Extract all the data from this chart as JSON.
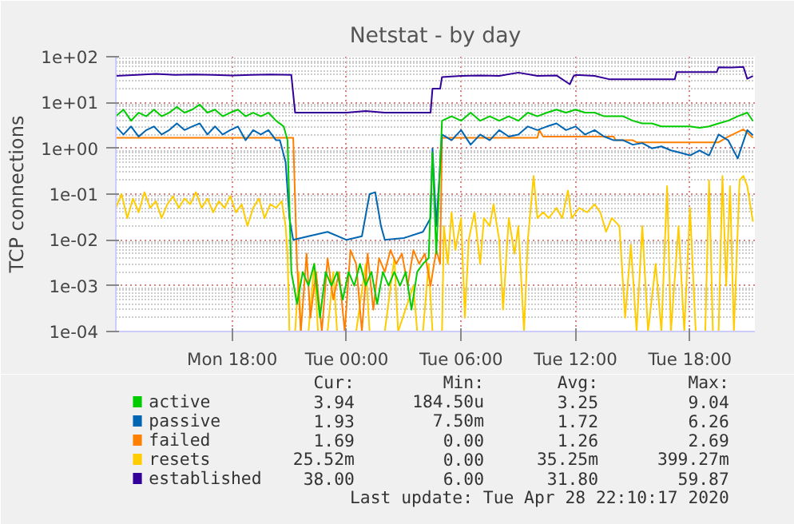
{
  "chart_data": {
    "type": "line",
    "title": "Netstat - by day",
    "ylabel": "TCP connections",
    "log": true,
    "grid": true,
    "legend": "bottom",
    "line_style": "solid",
    "xlim": [
      "2020-04-27T11:54",
      "2020-04-28T21:24"
    ],
    "ylim": [
      0.0001,
      100
    ],
    "xticks": [
      {
        "value": "2020-04-27T18:00",
        "label": "Mon 18:00"
      },
      {
        "value": "2020-04-28T00:00",
        "label": "Tue 00:00"
      },
      {
        "value": "2020-04-28T06:00",
        "label": "Tue 06:00"
      },
      {
        "value": "2020-04-28T12:00",
        "label": "Tue 12:00"
      },
      {
        "value": "2020-04-28T18:00",
        "label": "Tue 18:00"
      }
    ],
    "yticks": [
      {
        "value": 0.0001,
        "label": "1e-04"
      },
      {
        "value": 0.001,
        "label": "1e-03"
      },
      {
        "value": 0.01,
        "label": "1e-02"
      },
      {
        "value": 0.1,
        "label": "1e-01"
      },
      {
        "value": 1,
        "label": "1e+00"
      },
      {
        "value": 10,
        "label": "1e+01"
      },
      {
        "value": 100,
        "label": "1e+02"
      }
    ],
    "annotations": [
      "Cur:",
      "Min:",
      "Avg:",
      "Max:",
      "3.94",
      "184.50u",
      "3.25",
      "9.04",
      "1.93",
      "7.50m",
      "1.72",
      "6.26",
      "1.69",
      "0.00",
      "1.26",
      "2.69",
      "25.52m",
      "0.00",
      "35.25m",
      "399.27m",
      "38.00",
      "6.00",
      "31.80",
      "59.87",
      "Last update: Tue Apr 28 22:10:17 2020"
    ],
    "series": [
      {
        "name": "active",
        "color": "#00cc00",
        "x": [
          "2020-04-27T11:54",
          "2020-04-27T12:18",
          "2020-04-27T12:42",
          "2020-04-27T13:06",
          "2020-04-27T13:30",
          "2020-04-27T13:54",
          "2020-04-27T14:18",
          "2020-04-27T14:42",
          "2020-04-27T15:06",
          "2020-04-27T15:30",
          "2020-04-27T15:54",
          "2020-04-27T16:18",
          "2020-04-27T16:42",
          "2020-04-27T17:06",
          "2020-04-27T17:30",
          "2020-04-27T17:54",
          "2020-04-27T18:18",
          "2020-04-27T18:42",
          "2020-04-27T19:06",
          "2020-04-27T19:30",
          "2020-04-27T19:54",
          "2020-04-27T20:18",
          "2020-04-27T20:42",
          "2020-04-27T20:54",
          "2020-04-27T21:06",
          "2020-04-27T21:24",
          "2020-04-27T21:42",
          "2020-04-27T22:00",
          "2020-04-27T22:18",
          "2020-04-27T22:36",
          "2020-04-27T22:54",
          "2020-04-27T23:12",
          "2020-04-27T23:30",
          "2020-04-27T23:48",
          "2020-04-28T00:06",
          "2020-04-28T00:24",
          "2020-04-28T00:42",
          "2020-04-28T01:00",
          "2020-04-28T01:18",
          "2020-04-28T01:36",
          "2020-04-28T01:54",
          "2020-04-28T02:12",
          "2020-04-28T02:30",
          "2020-04-28T02:48",
          "2020-04-28T03:06",
          "2020-04-28T03:24",
          "2020-04-28T03:42",
          "2020-04-28T04:00",
          "2020-04-28T04:18",
          "2020-04-28T04:30",
          "2020-04-28T04:42",
          "2020-04-28T05:00",
          "2020-04-28T05:30",
          "2020-04-28T06:00",
          "2020-04-28T06:30",
          "2020-04-28T07:00",
          "2020-04-28T07:30",
          "2020-04-28T08:00",
          "2020-04-28T08:30",
          "2020-04-28T09:00",
          "2020-04-28T09:30",
          "2020-04-28T10:00",
          "2020-04-28T10:30",
          "2020-04-28T11:00",
          "2020-04-28T11:30",
          "2020-04-28T12:00",
          "2020-04-28T12:30",
          "2020-04-28T13:00",
          "2020-04-28T13:30",
          "2020-04-28T14:00",
          "2020-04-28T14:30",
          "2020-04-28T15:00",
          "2020-04-28T15:30",
          "2020-04-28T16:00",
          "2020-04-28T16:30",
          "2020-04-28T17:00",
          "2020-04-28T17:30",
          "2020-04-28T18:00",
          "2020-04-28T18:30",
          "2020-04-28T19:00",
          "2020-04-28T19:30",
          "2020-04-28T20:00",
          "2020-04-28T20:30",
          "2020-04-28T21:00",
          "2020-04-28T21:18"
        ],
        "values": [
          5,
          7,
          4,
          6,
          5,
          7,
          5,
          6,
          8,
          6,
          7,
          9,
          6,
          7,
          5,
          6,
          7,
          5,
          6,
          5,
          6,
          4,
          3,
          1.5,
          0.002,
          0.0004,
          0.002,
          0.001,
          0.003,
          0.0002,
          0.002,
          0.001,
          0.002,
          0.0005,
          0.002,
          0.001,
          0.003,
          0.001,
          0.002,
          0.0004,
          0.002,
          0.001,
          0.002,
          0.001,
          0.002,
          0.0003,
          0.002,
          0.003,
          0.004,
          0.8,
          0.005,
          4,
          5,
          4,
          6,
          4,
          5,
          4,
          5,
          4,
          6,
          5,
          6,
          7,
          6,
          7,
          6,
          6,
          5,
          5,
          5,
          4,
          3.5,
          3.5,
          3,
          3,
          3,
          3,
          2.8,
          3,
          3.5,
          4,
          5,
          6,
          3.94
        ]
      },
      {
        "name": "passive",
        "color": "#0066b3",
        "x": [
          "2020-04-27T11:54",
          "2020-04-27T12:18",
          "2020-04-27T12:42",
          "2020-04-27T13:06",
          "2020-04-27T13:30",
          "2020-04-27T13:54",
          "2020-04-27T14:18",
          "2020-04-27T14:42",
          "2020-04-27T15:06",
          "2020-04-27T15:30",
          "2020-04-27T15:54",
          "2020-04-27T16:18",
          "2020-04-27T16:42",
          "2020-04-27T17:06",
          "2020-04-27T17:30",
          "2020-04-27T17:54",
          "2020-04-27T18:18",
          "2020-04-27T18:42",
          "2020-04-27T19:06",
          "2020-04-27T19:30",
          "2020-04-27T19:54",
          "2020-04-27T20:18",
          "2020-04-27T20:30",
          "2020-04-27T20:48",
          "2020-04-27T21:00",
          "2020-04-27T21:12",
          "2020-04-27T22:00",
          "2020-04-27T23:00",
          "2020-04-28T00:00",
          "2020-04-28T00:48",
          "2020-04-28T01:12",
          "2020-04-28T01:30",
          "2020-04-28T01:48",
          "2020-04-28T02:00",
          "2020-04-28T03:00",
          "2020-04-28T04:00",
          "2020-04-28T04:24",
          "2020-04-28T04:30",
          "2020-04-28T04:42",
          "2020-04-28T05:00",
          "2020-04-28T05:30",
          "2020-04-28T06:00",
          "2020-04-28T06:30",
          "2020-04-28T07:00",
          "2020-04-28T07:30",
          "2020-04-28T08:00",
          "2020-04-28T08:30",
          "2020-04-28T09:00",
          "2020-04-28T09:30",
          "2020-04-28T10:00",
          "2020-04-28T10:30",
          "2020-04-28T11:00",
          "2020-04-28T11:30",
          "2020-04-28T12:00",
          "2020-04-28T12:30",
          "2020-04-28T13:00",
          "2020-04-28T13:30",
          "2020-04-28T14:00",
          "2020-04-28T14:30",
          "2020-04-28T15:00",
          "2020-04-28T15:30",
          "2020-04-28T16:00",
          "2020-04-28T16:30",
          "2020-04-28T17:00",
          "2020-04-28T17:30",
          "2020-04-28T18:00",
          "2020-04-28T18:30",
          "2020-04-28T19:00",
          "2020-04-28T19:30",
          "2020-04-28T20:00",
          "2020-04-28T20:30",
          "2020-04-28T21:00",
          "2020-04-28T21:18"
        ],
        "values": [
          3,
          2,
          3,
          1.8,
          2.5,
          3,
          2,
          2.5,
          3.5,
          2.5,
          3,
          3.5,
          2,
          3,
          2,
          2.5,
          3,
          1.5,
          2.5,
          2,
          2.5,
          1.5,
          1.5,
          0.5,
          0.03,
          0.01,
          0.012,
          0.015,
          0.01,
          0.012,
          0.1,
          0.11,
          0.02,
          0.01,
          0.011,
          0.015,
          0.03,
          1,
          0.02,
          2,
          1.5,
          2.5,
          1.2,
          2,
          1.5,
          2.5,
          1.8,
          2,
          3,
          2.5,
          3,
          3.5,
          2.5,
          3,
          2,
          2.5,
          1.8,
          1.5,
          1.5,
          1.2,
          1.3,
          1,
          1.1,
          0.9,
          0.8,
          0.7,
          0.9,
          0.7,
          2,
          1.5,
          0.6,
          2.5,
          1.93
        ]
      },
      {
        "name": "failed",
        "color": "#ff8000",
        "x": [
          "2020-04-27T11:54",
          "2020-04-27T13:00",
          "2020-04-27T15:00",
          "2020-04-27T17:00",
          "2020-04-27T19:00",
          "2020-04-27T20:54",
          "2020-04-27T21:12",
          "2020-04-27T21:24",
          "2020-04-27T21:36",
          "2020-04-27T21:54",
          "2020-04-27T22:06",
          "2020-04-27T22:24",
          "2020-04-27T22:42",
          "2020-04-27T23:00",
          "2020-04-27T23:18",
          "2020-04-27T23:36",
          "2020-04-27T23:54",
          "2020-04-28T00:12",
          "2020-04-28T00:30",
          "2020-04-28T00:48",
          "2020-04-28T01:06",
          "2020-04-28T01:24",
          "2020-04-28T01:42",
          "2020-04-28T02:00",
          "2020-04-28T02:18",
          "2020-04-28T02:36",
          "2020-04-28T02:54",
          "2020-04-28T03:12",
          "2020-04-28T03:30",
          "2020-04-28T03:48",
          "2020-04-28T04:06",
          "2020-04-28T04:24",
          "2020-04-28T04:42",
          "2020-04-28T04:54",
          "2020-04-28T05:00",
          "2020-04-28T10:00",
          "2020-04-28T10:06",
          "2020-04-28T10:18",
          "2020-04-28T14:00",
          "2020-04-28T14:06",
          "2020-04-28T15:00",
          "2020-04-28T15:12",
          "2020-04-28T19:30",
          "2020-04-28T20:00",
          "2020-04-28T20:48",
          "2020-04-28T21:18"
        ],
        "values": [
          1.7,
          1.7,
          1.7,
          1.7,
          1.7,
          1.7,
          1.7,
          0.003,
          0.0001,
          0.005,
          0.0002,
          0.002,
          0.0001,
          0.004,
          0.0005,
          0.002,
          0.0001,
          0.006,
          0.003,
          0.0001,
          0.005,
          0.0003,
          0.004,
          0.002,
          0.006,
          0.003,
          0.005,
          0.001,
          0.006,
          0.003,
          0.005,
          0.001,
          0.006,
          0.003,
          1.7,
          1.7,
          2.5,
          1.8,
          1.8,
          1.5,
          1.5,
          1.35,
          1.35,
          1.8,
          2.6,
          1.69
        ]
      },
      {
        "name": "resets",
        "color": "#ffcc00",
        "x": [
          "2020-04-27T11:54",
          "2020-04-27T12:12",
          "2020-04-27T12:30",
          "2020-04-27T12:48",
          "2020-04-27T13:06",
          "2020-04-27T13:24",
          "2020-04-27T13:42",
          "2020-04-27T14:00",
          "2020-04-27T14:18",
          "2020-04-27T14:36",
          "2020-04-27T14:54",
          "2020-04-27T15:12",
          "2020-04-27T15:30",
          "2020-04-27T15:48",
          "2020-04-27T16:06",
          "2020-04-27T16:24",
          "2020-04-27T16:42",
          "2020-04-27T17:00",
          "2020-04-27T17:18",
          "2020-04-27T17:36",
          "2020-04-27T17:54",
          "2020-04-27T18:12",
          "2020-04-27T18:30",
          "2020-04-27T18:48",
          "2020-04-27T19:06",
          "2020-04-27T19:24",
          "2020-04-27T19:42",
          "2020-04-27T20:00",
          "2020-04-27T20:18",
          "2020-04-27T20:36",
          "2020-04-27T20:48",
          "2020-04-27T20:54",
          "2020-04-27T21:00",
          "2020-04-27T21:18",
          "2020-04-27T21:30",
          "2020-04-27T21:36",
          "2020-04-27T22:00",
          "2020-04-27T22:18",
          "2020-04-27T22:30",
          "2020-04-27T23:00",
          "2020-04-27T23:18",
          "2020-04-27T23:30",
          "2020-04-28T00:30",
          "2020-04-28T01:00",
          "2020-04-28T01:12",
          "2020-04-28T02:00",
          "2020-04-28T02:30",
          "2020-04-28T02:42",
          "2020-04-28T03:30",
          "2020-04-28T03:42",
          "2020-04-28T04:00",
          "2020-04-28T04:18",
          "2020-04-28T04:30",
          "2020-04-28T05:00",
          "2020-04-28T05:06",
          "2020-04-28T05:18",
          "2020-04-28T05:30",
          "2020-04-28T05:42",
          "2020-04-28T06:00",
          "2020-04-28T06:12",
          "2020-04-28T06:24",
          "2020-04-28T06:42",
          "2020-04-28T07:00",
          "2020-04-28T07:12",
          "2020-04-28T07:30",
          "2020-04-28T07:42",
          "2020-04-28T08:00",
          "2020-04-28T08:12",
          "2020-04-28T08:30",
          "2020-04-28T08:48",
          "2020-04-28T09:00",
          "2020-04-28T09:18",
          "2020-04-28T09:30",
          "2020-04-28T09:48",
          "2020-04-28T10:00",
          "2020-04-28T10:18",
          "2020-04-28T10:36",
          "2020-04-28T11:00",
          "2020-04-28T11:18",
          "2020-04-28T11:36",
          "2020-04-28T11:48",
          "2020-04-28T12:12",
          "2020-04-28T12:36",
          "2020-04-28T13:00",
          "2020-04-28T13:18",
          "2020-04-28T13:36",
          "2020-04-28T13:54",
          "2020-04-28T14:18",
          "2020-04-28T14:36",
          "2020-04-28T14:54",
          "2020-04-28T15:12",
          "2020-04-28T15:30",
          "2020-04-28T15:48",
          "2020-04-28T16:12",
          "2020-04-28T16:30",
          "2020-04-28T16:48",
          "2020-04-28T17:00",
          "2020-04-28T17:24",
          "2020-04-28T17:42",
          "2020-04-28T18:00",
          "2020-04-28T18:18",
          "2020-04-28T18:48",
          "2020-04-28T19:00",
          "2020-04-28T19:12",
          "2020-04-28T19:30",
          "2020-04-28T19:42",
          "2020-04-28T19:54",
          "2020-04-28T20:06",
          "2020-04-28T20:18",
          "2020-04-28T20:36",
          "2020-04-28T20:48",
          "2020-04-28T21:00",
          "2020-04-28T21:18"
        ],
        "values": [
          0.05,
          0.1,
          0.03,
          0.08,
          0.04,
          0.11,
          0.05,
          0.07,
          0.03,
          0.06,
          0.09,
          0.05,
          0.08,
          0.06,
          0.11,
          0.05,
          0.08,
          0.04,
          0.07,
          0.05,
          0.09,
          0.04,
          0.06,
          0.02,
          0.05,
          0.08,
          0.03,
          0.06,
          0.05,
          0.07,
          0.02,
          0.005,
          0.0001,
          0.0001,
          0.002,
          0.0001,
          0.0001,
          0.003,
          0.0001,
          0.0001,
          0.002,
          0.0001,
          0.0001,
          0.003,
          0.0001,
          0.0001,
          0.004,
          0.0001,
          0.001,
          0.0001,
          0.0001,
          0.003,
          0.0001,
          0.0001,
          0.02,
          0.003,
          0.04,
          0.006,
          0.03,
          0.0002,
          0.01,
          0.04,
          0.003,
          0.03,
          0.02,
          0.06,
          0.01,
          0.0003,
          0.03,
          0.005,
          0.02,
          0.0001,
          0.01,
          0.25,
          0.03,
          0.04,
          0.03,
          0.05,
          0.03,
          0.12,
          0.03,
          0.05,
          0.04,
          0.06,
          0.04,
          0.015,
          0.03,
          0.02,
          0.0002,
          0.008,
          0.0001,
          0.02,
          0.0001,
          0.003,
          0.0001,
          0.15,
          0.0001,
          0.02,
          0.0001,
          0.05,
          0.0001,
          0.0001,
          0.2,
          0.0001,
          0.0001,
          0.25,
          0.001,
          0.15,
          0.0001,
          0.2,
          0.25,
          0.15,
          0.025
        ]
      },
      {
        "name": "established",
        "color": "#330099",
        "x": [
          "2020-04-27T11:54",
          "2020-04-27T13:00",
          "2020-04-27T14:00",
          "2020-04-27T15:00",
          "2020-04-27T16:00",
          "2020-04-27T17:00",
          "2020-04-27T18:00",
          "2020-04-27T19:00",
          "2020-04-27T20:00",
          "2020-04-27T21:06",
          "2020-04-27T21:18",
          "2020-04-27T23:00",
          "2020-04-28T00:00",
          "2020-04-28T01:00",
          "2020-04-28T02:00",
          "2020-04-28T03:00",
          "2020-04-28T04:24",
          "2020-04-28T04:30",
          "2020-04-28T04:54",
          "2020-04-28T05:00",
          "2020-04-28T06:00",
          "2020-04-28T07:00",
          "2020-04-28T08:00",
          "2020-04-28T09:00",
          "2020-04-28T10:00",
          "2020-04-28T11:00",
          "2020-04-28T11:42",
          "2020-04-28T11:54",
          "2020-04-28T12:00",
          "2020-04-28T13:00",
          "2020-04-28T13:48",
          "2020-04-28T14:30",
          "2020-04-28T16:00",
          "2020-04-28T17:12",
          "2020-04-28T17:18",
          "2020-04-28T18:00",
          "2020-04-28T19:24",
          "2020-04-28T19:30",
          "2020-04-28T20:12",
          "2020-04-28T20:48",
          "2020-04-28T21:00",
          "2020-04-28T21:18"
        ],
        "values": [
          38,
          40,
          42,
          40,
          41,
          40,
          39,
          40,
          41,
          40,
          6,
          6,
          6,
          6.5,
          6,
          6,
          6,
          20,
          20,
          36,
          38,
          39,
          38,
          45,
          38,
          39,
          25,
          38,
          40,
          38,
          32,
          32,
          32,
          32,
          46,
          46,
          46,
          59,
          58,
          60,
          33,
          38
        ]
      }
    ]
  }
}
